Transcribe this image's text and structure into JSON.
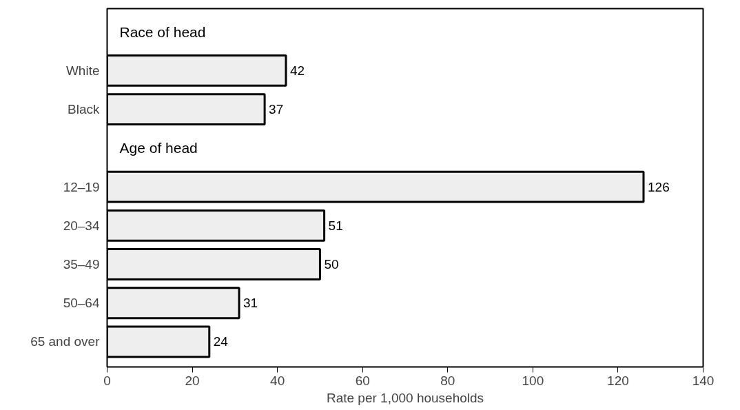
{
  "chart_data": {
    "type": "bar",
    "orientation": "horizontal",
    "xlabel": "Rate per 1,000 households",
    "categories": [
      null,
      "White",
      "Black",
      null,
      "12–19",
      "20–34",
      "35–49",
      "50–64",
      "65 and over"
    ],
    "values": [
      null,
      42,
      37,
      null,
      126,
      51,
      50,
      31,
      24
    ],
    "color": "#eeeeee",
    "annotations": [
      "Race of head",
      "Age of head"
    ],
    "xlim": [
      0,
      140
    ],
    "xticks": [
      0,
      20,
      40,
      60,
      80,
      100,
      120,
      140
    ],
    "data_labels": true,
    "grid": false
  }
}
